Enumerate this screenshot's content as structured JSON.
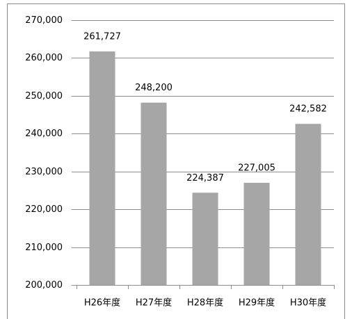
{
  "chart_data": {
    "type": "bar",
    "categories": [
      "H26年度",
      "H27年度",
      "H28年度",
      "H29年度",
      "H30年度"
    ],
    "values": [
      261727,
      248200,
      224387,
      227005,
      242582
    ],
    "value_labels": [
      "261,727",
      "248,200",
      "224,387",
      "227,005",
      "242,582"
    ],
    "color": "#a6a6a6",
    "ylim": [
      200000,
      270000
    ],
    "yticks": [
      {
        "value": 200000,
        "label": "200,000"
      },
      {
        "value": 210000,
        "label": "210,000"
      },
      {
        "value": 220000,
        "label": "220,000"
      },
      {
        "value": 230000,
        "label": "230,000"
      },
      {
        "value": 240000,
        "label": "240,000"
      },
      {
        "value": 250000,
        "label": "250,000"
      },
      {
        "value": 260000,
        "label": "260,000"
      },
      {
        "value": 270000,
        "label": "270,000"
      }
    ],
    "grid": true
  }
}
